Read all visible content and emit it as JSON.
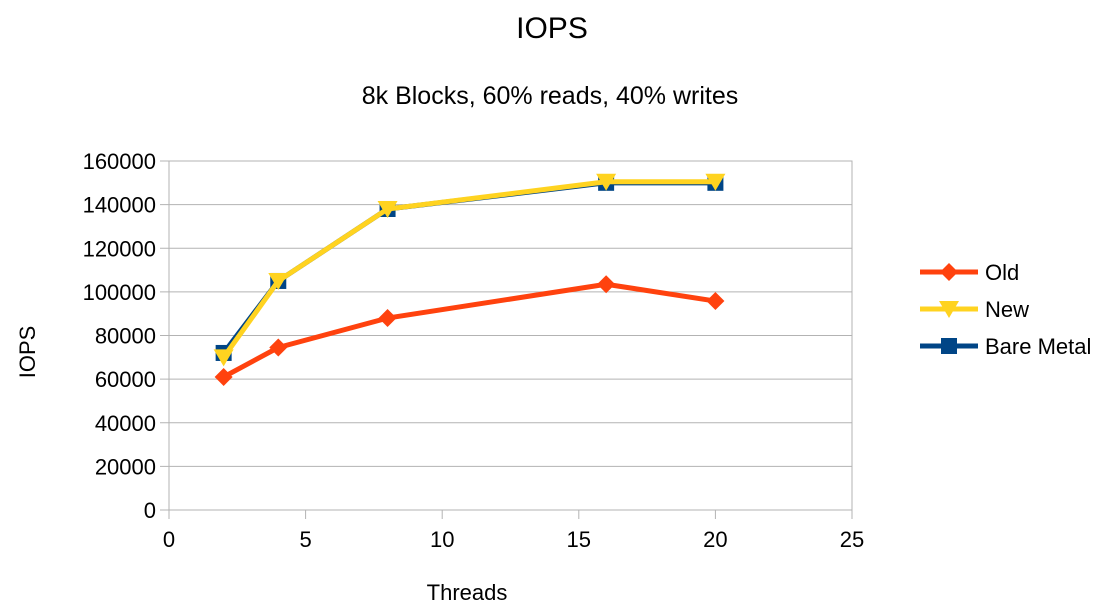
{
  "chart_data": {
    "type": "scatter",
    "title": "IOPS",
    "subtitle": "8k Blocks, 60% reads, 40% writes",
    "xlabel": "Threads",
    "ylabel": "IOPS",
    "xlim": [
      0,
      25
    ],
    "ylim": [
      0,
      160000
    ],
    "x_ticks": [
      0,
      5,
      10,
      15,
      20,
      25
    ],
    "y_ticks": [
      0,
      20000,
      40000,
      60000,
      80000,
      100000,
      120000,
      140000,
      160000
    ],
    "grid": true,
    "legend_position": "right",
    "series": [
      {
        "name": "Old",
        "color": "#ff420e",
        "marker": "diamond",
        "x": [
          2,
          4,
          8,
          16,
          20
        ],
        "y": [
          61000,
          74500,
          88000,
          103500,
          95800
        ]
      },
      {
        "name": "New",
        "color": "#ffd320",
        "marker": "triangle-down",
        "x": [
          2,
          4,
          8,
          16,
          20
        ],
        "y": [
          70000,
          105000,
          138000,
          150500,
          150500
        ]
      },
      {
        "name": "Bare Metal",
        "color": "#004586",
        "marker": "square",
        "x": [
          2,
          4,
          8,
          16,
          20
        ],
        "y": [
          72000,
          105000,
          138000,
          150000,
          150000
        ]
      }
    ]
  }
}
